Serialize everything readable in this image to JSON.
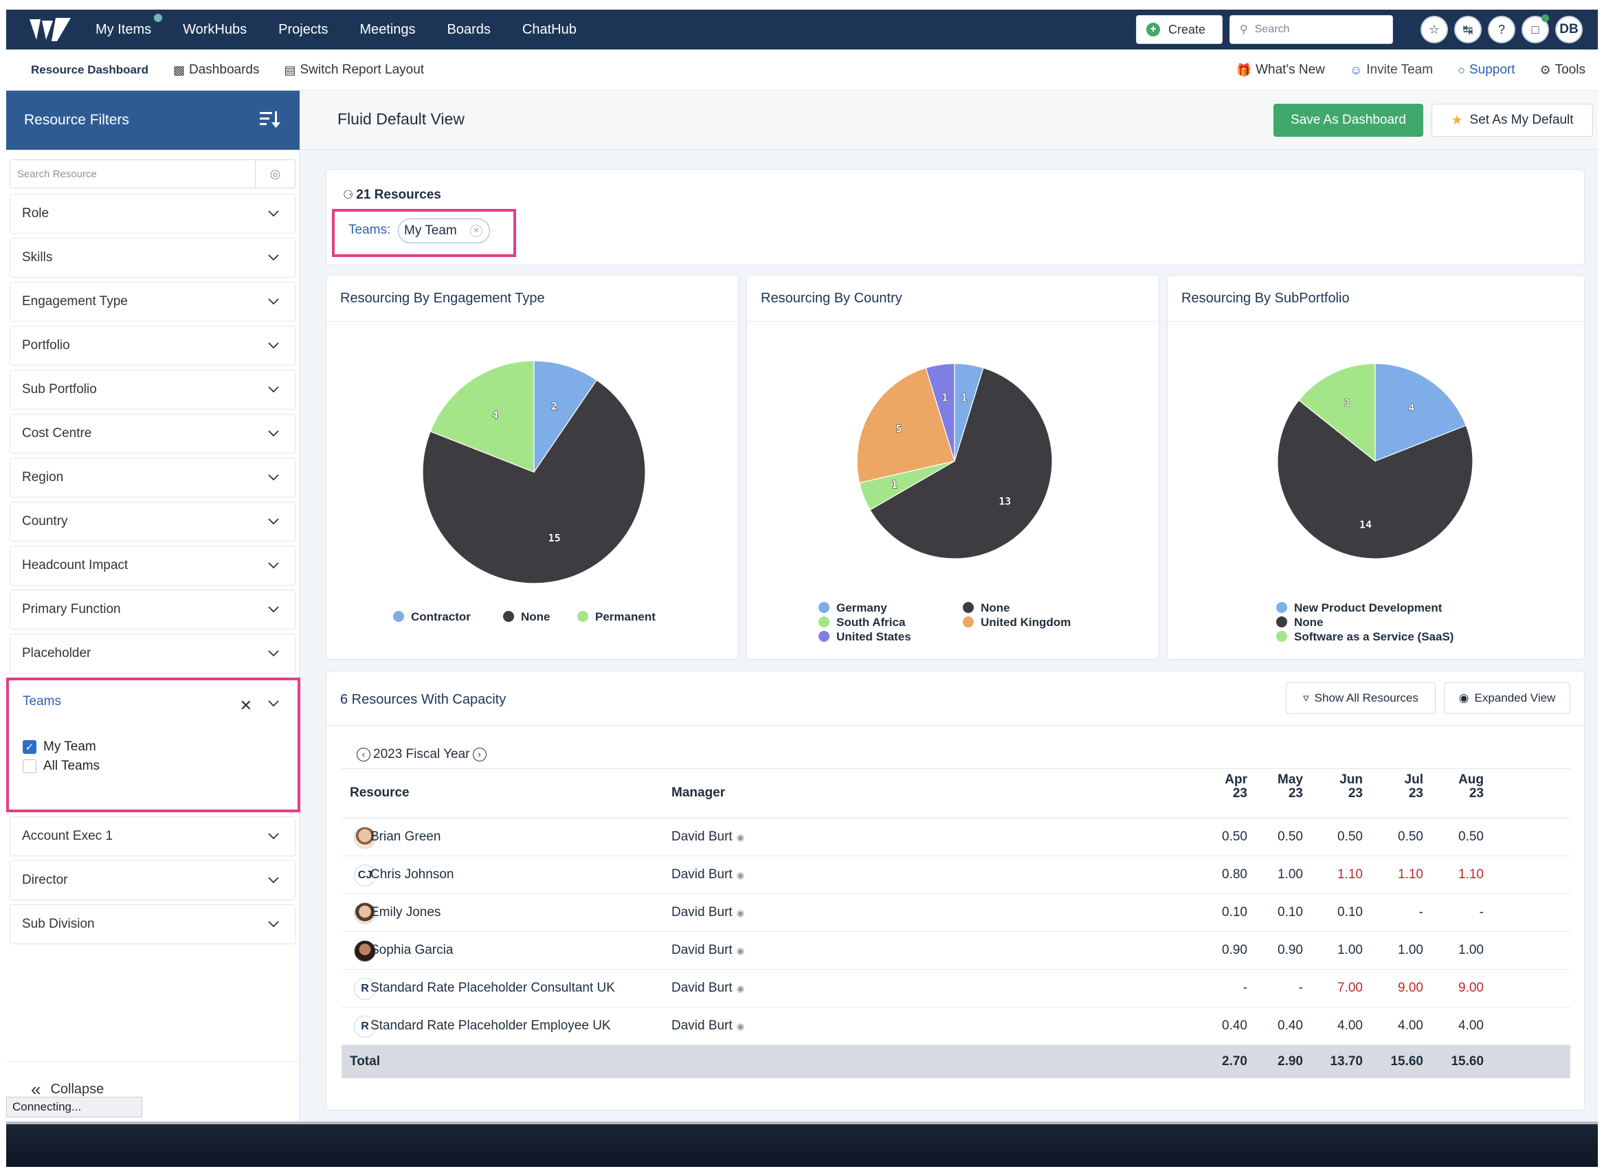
{
  "topnav": {
    "items": [
      "My Items",
      "WorkHubs",
      "Projects",
      "Meetings",
      "Boards",
      "ChatHub"
    ],
    "create_label": "Create",
    "search_placeholder": "Search",
    "avatar_initials": "DB"
  },
  "subnav": {
    "left": [
      "Resource Dashboard",
      "Dashboards",
      "Switch Report Layout"
    ],
    "right": [
      "What's New",
      "Invite Team",
      "Support",
      "Tools"
    ]
  },
  "sidebar": {
    "title": "Resource Filters",
    "search_placeholder": "Search Resource",
    "filters_before": [
      "Role",
      "Skills",
      "Engagement Type",
      "Portfolio",
      "Sub Portfolio",
      "Cost Centre",
      "Region",
      "Country",
      "Headcount Impact",
      "Primary Function",
      "Placeholder"
    ],
    "teams": {
      "title": "Teams",
      "options": [
        {
          "label": "My Team",
          "checked": true
        },
        {
          "label": "All Teams",
          "checked": false
        }
      ]
    },
    "filters_after": [
      "Account Exec 1",
      "Director",
      "Sub Division"
    ],
    "collapse_label": "Collapse",
    "status": "Connecting..."
  },
  "main": {
    "view_title": "Fluid Default View",
    "save_button": "Save As Dashboard",
    "default_button": "Set As My Default",
    "resource_count": "21 Resources",
    "teams_label": "Teams:",
    "teams_chip": "My Team"
  },
  "colors": {
    "blue": "#7fade8",
    "dark": "#3d3d41",
    "green": "#a5e58a",
    "orange": "#eda663",
    "purple": "#7f7fe3"
  },
  "chart_data": [
    {
      "type": "pie",
      "title": "Resourcing By Engagement Type",
      "slices": [
        {
          "label": "Contractor",
          "value": 2,
          "color": "#7fade8"
        },
        {
          "label": "None",
          "value": 15,
          "color": "#3d3d41"
        },
        {
          "label": "Permanent",
          "value": 4,
          "color": "#a5e58a"
        }
      ],
      "legend_position": "bottom"
    },
    {
      "type": "pie",
      "title": "Resourcing By Country",
      "slices": [
        {
          "label": "Germany",
          "value": 1,
          "color": "#7fade8"
        },
        {
          "label": "None",
          "value": 13,
          "color": "#3d3d41"
        },
        {
          "label": "South Africa",
          "value": 1,
          "color": "#a5e58a"
        },
        {
          "label": "United Kingdom",
          "value": 5,
          "color": "#eda663"
        },
        {
          "label": "United States",
          "value": 1,
          "color": "#7f7fe3"
        }
      ],
      "legend_position": "bottom"
    },
    {
      "type": "pie",
      "title": "Resourcing By SubPortfolio",
      "slices": [
        {
          "label": "New Product Development",
          "value": 4,
          "color": "#7fade8"
        },
        {
          "label": "None",
          "value": 14,
          "color": "#3d3d41"
        },
        {
          "label": "Software as a Service (SaaS)",
          "value": 3,
          "color": "#a5e58a"
        }
      ],
      "legend_position": "bottom"
    }
  ],
  "capacity": {
    "title": "6 Resources With Capacity",
    "show_all_button": "Show All Resources",
    "expanded_button": "Expanded View",
    "fiscal_year": "2023 Fiscal Year",
    "columns": {
      "resource": "Resource",
      "manager": "Manager",
      "months": [
        [
          "Apr",
          "23"
        ],
        [
          "May",
          "23"
        ],
        [
          "Jun",
          "23"
        ],
        [
          "Jul",
          "23"
        ],
        [
          "Aug",
          "23"
        ]
      ]
    },
    "rows": [
      {
        "avatar": "",
        "name": "Brian Green",
        "manager": "David Burt",
        "values": [
          "0.50",
          "0.50",
          "0.50",
          "0.50",
          "0.50"
        ],
        "over": [
          false,
          false,
          false,
          false,
          false
        ]
      },
      {
        "avatar": "CJ",
        "name": "Chris Johnson",
        "manager": "David Burt",
        "values": [
          "0.80",
          "1.00",
          "1.10",
          "1.10",
          "1.10"
        ],
        "over": [
          false,
          false,
          true,
          true,
          true
        ]
      },
      {
        "avatar": "",
        "name": "Emily Jones",
        "manager": "David Burt",
        "values": [
          "0.10",
          "0.10",
          "0.10",
          "-",
          "-"
        ],
        "over": [
          false,
          false,
          false,
          false,
          false
        ]
      },
      {
        "avatar": "",
        "name": "Sophia Garcia",
        "manager": "David Burt",
        "values": [
          "0.90",
          "0.90",
          "1.00",
          "1.00",
          "1.00"
        ],
        "over": [
          false,
          false,
          false,
          false,
          false
        ]
      },
      {
        "avatar": "R",
        "name": "Standard Rate Placeholder Consultant UK",
        "manager": "David Burt",
        "values": [
          "-",
          "-",
          "7.00",
          "9.00",
          "9.00"
        ],
        "over": [
          false,
          false,
          true,
          true,
          true
        ]
      },
      {
        "avatar": "R",
        "name": "Standard Rate Placeholder Employee UK",
        "manager": "David Burt",
        "values": [
          "0.40",
          "0.40",
          "4.00",
          "4.00",
          "4.00"
        ],
        "over": [
          false,
          false,
          false,
          false,
          false
        ]
      }
    ],
    "total": {
      "label": "Total",
      "values": [
        "2.70",
        "2.90",
        "13.70",
        "15.60",
        "15.60"
      ]
    }
  }
}
